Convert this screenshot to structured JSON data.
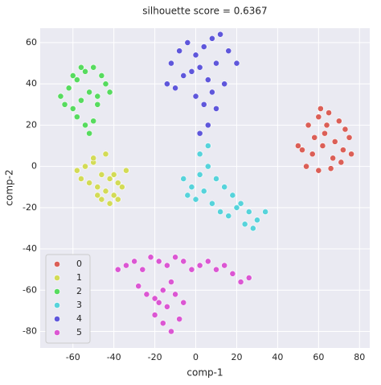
{
  "chart_data": {
    "type": "scatter",
    "title": "silhouette score = 0.6367",
    "x_label": "comp-1",
    "y_label": "comp-2",
    "xlim": [
      -76,
      85
    ],
    "ylim": [
      -88,
      67
    ],
    "xticks": [
      -60,
      -40,
      -20,
      0,
      20,
      40,
      60,
      80
    ],
    "yticks": [
      -80,
      -60,
      -40,
      -20,
      0,
      20,
      40,
      60
    ],
    "grid": true,
    "legend": "lower left",
    "series": [
      {
        "name": "0",
        "color": "#db5f57",
        "x": [
          55,
          60,
          65,
          70,
          58,
          63,
          68,
          73,
          52,
          57,
          62,
          67,
          72,
          76,
          54,
          60,
          66,
          71,
          61,
          50,
          75,
          64
        ],
        "values": [
          20,
          24,
          26,
          22,
          14,
          16,
          12,
          18,
          8,
          6,
          10,
          4,
          8,
          6,
          0,
          -2,
          -1,
          2,
          28,
          10,
          14,
          20
        ]
      },
      {
        "name": "1",
        "color": "#d3db57",
        "x": [
          -58,
          -54,
          -50,
          -46,
          -42,
          -38,
          -34,
          -52,
          -48,
          -44,
          -40,
          -36,
          -56,
          -46,
          -42,
          -38,
          -50,
          -44,
          -48,
          -40
        ],
        "values": [
          -2,
          0,
          2,
          -4,
          -6,
          -8,
          -2,
          -8,
          -10,
          -12,
          -14,
          -10,
          -6,
          -16,
          -18,
          -16,
          4,
          6,
          -14,
          -4
        ]
      },
      {
        "name": "2",
        "color": "#57db5f",
        "x": [
          -66,
          -62,
          -58,
          -54,
          -50,
          -46,
          -42,
          -64,
          -60,
          -56,
          -52,
          -48,
          -44,
          -58,
          -54,
          -50,
          -56,
          -52,
          -60,
          -48
        ],
        "values": [
          34,
          38,
          42,
          46,
          48,
          44,
          36,
          30,
          28,
          32,
          36,
          34,
          40,
          24,
          20,
          22,
          48,
          16,
          44,
          30
        ]
      },
      {
        "name": "3",
        "color": "#57d3db",
        "x": [
          -6,
          -2,
          2,
          6,
          10,
          14,
          18,
          22,
          26,
          30,
          34,
          0,
          4,
          8,
          12,
          16,
          20,
          24,
          28,
          2,
          6,
          -4
        ],
        "values": [
          -6,
          -10,
          -4,
          0,
          -6,
          -10,
          -14,
          -18,
          -22,
          -26,
          -22,
          -16,
          -12,
          -18,
          -22,
          -24,
          -20,
          -28,
          -30,
          6,
          10,
          -14
        ]
      },
      {
        "name": "4",
        "color": "#5f57db",
        "x": [
          -12,
          -8,
          -4,
          0,
          4,
          8,
          12,
          16,
          20,
          -6,
          -2,
          2,
          6,
          10,
          14,
          -10,
          0,
          4,
          8,
          10,
          -14,
          6,
          2
        ],
        "values": [
          50,
          56,
          60,
          54,
          58,
          62,
          64,
          56,
          50,
          44,
          46,
          48,
          42,
          50,
          40,
          38,
          34,
          30,
          36,
          28,
          40,
          20,
          16
        ]
      },
      {
        "name": "5",
        "color": "#db57d3",
        "x": [
          -38,
          -34,
          -30,
          -26,
          -22,
          -18,
          -14,
          -10,
          -6,
          -2,
          2,
          6,
          10,
          14,
          18,
          22,
          26,
          -28,
          -24,
          -20,
          -16,
          -12,
          -20,
          -16,
          -12,
          -8,
          -14,
          -18,
          -6,
          -10
        ],
        "values": [
          -50,
          -48,
          -46,
          -50,
          -44,
          -46,
          -48,
          -44,
          -46,
          -50,
          -48,
          -46,
          -50,
          -48,
          -52,
          -56,
          -54,
          -58,
          -62,
          -64,
          -60,
          -56,
          -72,
          -76,
          -80,
          -74,
          -68,
          -66,
          -66,
          -62
        ]
      }
    ]
  }
}
